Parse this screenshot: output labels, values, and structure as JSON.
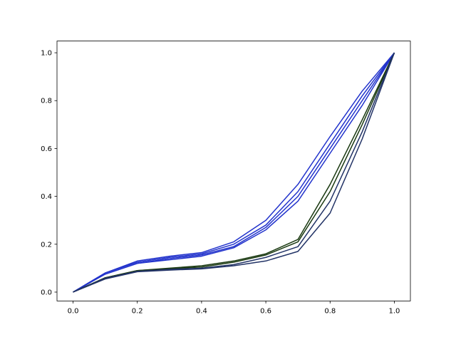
{
  "chart_data": {
    "type": "line",
    "x": [
      0,
      0.1,
      0.2,
      0.3,
      0.4,
      0.5,
      0.6,
      0.7,
      0.8,
      0.9,
      1
    ],
    "series": [
      {
        "color": "#2233cc",
        "values": [
          0,
          0.08,
          0.13,
          0.15,
          0.165,
          0.21,
          0.3,
          0.45,
          0.65,
          0.84,
          1
        ]
      },
      {
        "color": "#2233cc",
        "values": [
          0,
          0.08,
          0.125,
          0.145,
          0.16,
          0.2,
          0.28,
          0.42,
          0.62,
          0.82,
          1
        ]
      },
      {
        "color": "#2233cc",
        "values": [
          0,
          0.075,
          0.12,
          0.14,
          0.155,
          0.19,
          0.27,
          0.4,
          0.6,
          0.8,
          1
        ]
      },
      {
        "color": "#2233cc",
        "values": [
          0,
          0.075,
          0.12,
          0.135,
          0.15,
          0.185,
          0.26,
          0.38,
          0.58,
          0.78,
          1
        ]
      },
      {
        "color": "#1b3a12",
        "values": [
          0,
          0.06,
          0.09,
          0.1,
          0.11,
          0.13,
          0.16,
          0.22,
          0.45,
          0.72,
          1
        ]
      },
      {
        "color": "#1b3a12",
        "values": [
          0,
          0.06,
          0.09,
          0.098,
          0.105,
          0.125,
          0.155,
          0.21,
          0.42,
          0.7,
          1
        ]
      },
      {
        "color": "#223366",
        "values": [
          0,
          0.058,
          0.087,
          0.095,
          0.1,
          0.115,
          0.145,
          0.19,
          0.38,
          0.67,
          1
        ]
      },
      {
        "color": "#223366",
        "values": [
          0,
          0.055,
          0.085,
          0.092,
          0.097,
          0.11,
          0.13,
          0.17,
          0.33,
          0.64,
          1
        ]
      }
    ],
    "xlim": [
      -0.05,
      1.05
    ],
    "ylim": [
      -0.037,
      1.049
    ],
    "xticks": [
      {
        "value": 0,
        "label": "0.0"
      },
      0.2,
      0.4,
      0.6,
      0.8,
      {
        "value": 1,
        "label": "1.0"
      }
    ],
    "yticks": [
      {
        "value": 0,
        "label": "0.0"
      },
      0.2,
      0.4,
      0.6,
      0.8,
      {
        "value": 1,
        "label": "1.0"
      }
    ]
  }
}
